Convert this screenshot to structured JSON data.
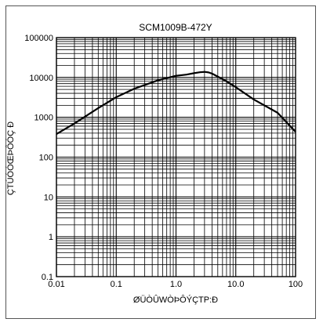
{
  "chart_data": {
    "type": "line",
    "title": "SCM1009B-472Y",
    "xlabel": "ØÜÒÛWÒÞÔÝÇTP:Ð",
    "ylabel": "ÇTÚÓÓŒÞÔÓÇ Ð",
    "xscale": "log",
    "yscale": "log",
    "xlim": [
      0.01,
      100
    ],
    "ylim": [
      0.1,
      100000
    ],
    "grid": true,
    "x_ticks": [
      {
        "v": 0.01,
        "label": "0.01"
      },
      {
        "v": 0.1,
        "label": "0.1"
      },
      {
        "v": 1,
        "label": "1.0"
      },
      {
        "v": 10,
        "label": "10.0"
      },
      {
        "v": 100,
        "label": "100"
      }
    ],
    "y_ticks": [
      {
        "v": 0.1,
        "label": "0.1"
      },
      {
        "v": 1,
        "label": "1"
      },
      {
        "v": 10,
        "label": "10"
      },
      {
        "v": 100,
        "label": "100"
      },
      {
        "v": 1000,
        "label": "1000"
      },
      {
        "v": 10000,
        "label": "10000"
      },
      {
        "v": 100000,
        "label": "100000"
      }
    ],
    "series": [
      {
        "x": [
          0.01,
          0.02,
          0.05,
          0.1,
          0.2,
          0.5,
          1.0,
          1.5,
          2.0,
          2.5,
          3.0,
          3.5,
          4.0,
          5.0,
          7.0,
          10,
          20,
          50,
          100
        ],
        "y": [
          380,
          700,
          1700,
          3200,
          5200,
          8500,
          11000,
          11800,
          12800,
          13500,
          13800,
          13400,
          12500,
          10500,
          8000,
          5700,
          2800,
          1300,
          430
        ]
      }
    ]
  }
}
